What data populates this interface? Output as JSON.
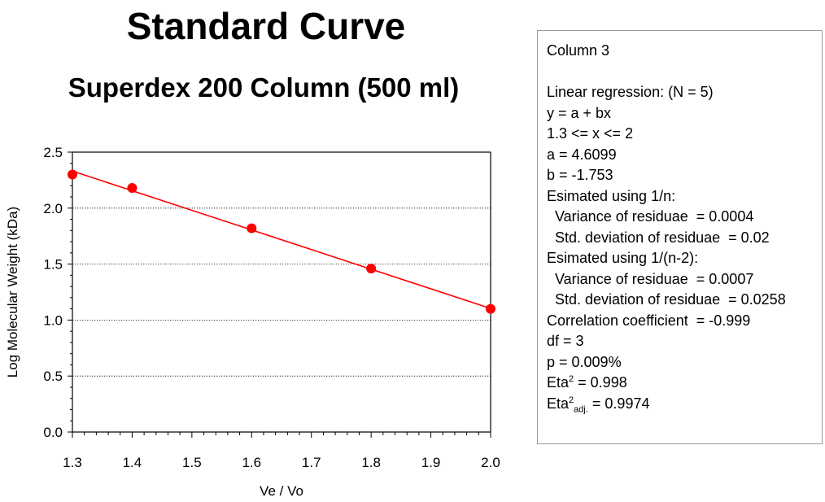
{
  "chart_data": {
    "type": "scatter",
    "title": "Standard Curve",
    "subtitle": "Superdex 200 Column (500 ml)",
    "xlabel": "Ve / Vo",
    "ylabel": "Log  Molecular Weight (kDa)",
    "xlim": [
      1.3,
      2.0
    ],
    "ylim": [
      0.0,
      2.5
    ],
    "x_ticks": [
      "1.3",
      "1.4",
      "1.5",
      "1.6",
      "1.7",
      "1.8",
      "1.9",
      "2.0"
    ],
    "y_ticks": [
      "0.0",
      "0.5",
      "1.0",
      "1.5",
      "2.0",
      "2.5"
    ],
    "grid": "horizontal dotted",
    "series": [
      {
        "type": "scatter",
        "color": "#ff0000",
        "points": [
          {
            "x": 1.3,
            "y": 2.3
          },
          {
            "x": 1.4,
            "y": 2.18
          },
          {
            "x": 1.6,
            "y": 1.82
          },
          {
            "x": 1.8,
            "y": 1.46
          },
          {
            "x": 2.0,
            "y": 1.1
          }
        ]
      },
      {
        "type": "line",
        "color": "#ff0000",
        "points": [
          {
            "x": 1.3,
            "y": 2.331
          },
          {
            "x": 2.0,
            "y": 1.1039
          }
        ]
      }
    ]
  },
  "stats": {
    "column_label": "Column 3",
    "regression_label": "Linear regression: (N = 5)",
    "equation": "y = a + bx",
    "range": "1.3 <= x <= 2",
    "a": "a = 4.6099",
    "b": "b = -1.753",
    "est_n_label": "Esimated using 1/n:",
    "variance_n": "  Variance of residuae  = 0.0004",
    "stddev_n": "  Std. deviation of residuae  = 0.02",
    "est_n2_label": "Esimated using 1/(n-2):",
    "variance_n2": "  Variance of residuae  = 0.0007",
    "stddev_n2": "  Std. deviation of residuae  = 0.0258",
    "correlation": "Correlation coefficient  = -0.999",
    "df": "df = 3",
    "p": "p = 0.009%",
    "eta_base": "Eta",
    "eta_sup": "2",
    "eta_value": " = 0.998",
    "eta_adj_base": "Eta",
    "eta_adj_sup": "2",
    "eta_adj_sub": "adj.",
    "eta_adj_value": " = 0.9974"
  }
}
